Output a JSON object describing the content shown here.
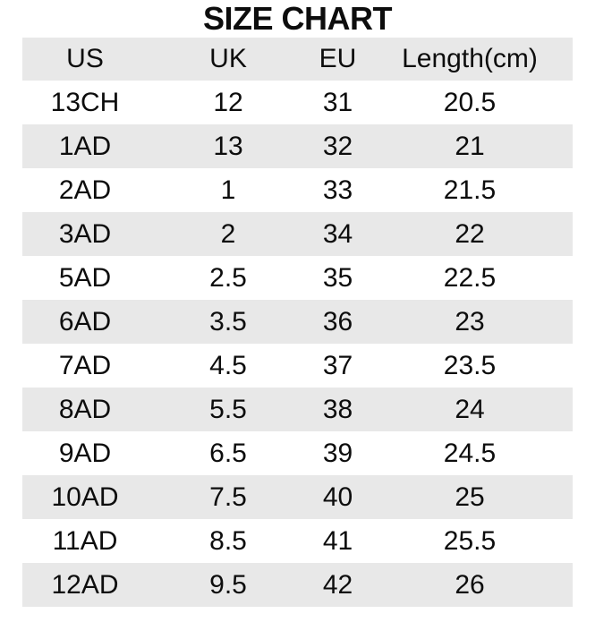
{
  "title": "SIZE CHART",
  "chart_data": {
    "type": "table",
    "title": "SIZE CHART",
    "columns": [
      "US",
      "UK",
      "EU",
      "Length(cm)"
    ],
    "rows": [
      [
        "13CH",
        "12",
        "31",
        "20.5"
      ],
      [
        "1AD",
        "13",
        "32",
        "21"
      ],
      [
        "2AD",
        "1",
        "33",
        "21.5"
      ],
      [
        "3AD",
        "2",
        "34",
        "22"
      ],
      [
        "5AD",
        "2.5",
        "35",
        "22.5"
      ],
      [
        "6AD",
        "3.5",
        "36",
        "23"
      ],
      [
        "7AD",
        "4.5",
        "37",
        "23.5"
      ],
      [
        "8AD",
        "5.5",
        "38",
        "24"
      ],
      [
        "9AD",
        "6.5",
        "39",
        "24.5"
      ],
      [
        "10AD",
        "7.5",
        "40",
        "25"
      ],
      [
        "11AD",
        "8.5",
        "41",
        "25.5"
      ],
      [
        "12AD",
        "9.5",
        "42",
        "26"
      ]
    ],
    "layout": {
      "striped": true,
      "header_background": "#e8e8e8",
      "stripe_pattern": "white first data row, then alternating gray"
    }
  },
  "colors": {
    "stripe": "#e8e8e8",
    "text": "#0d0d0d",
    "background": "#ffffff"
  }
}
